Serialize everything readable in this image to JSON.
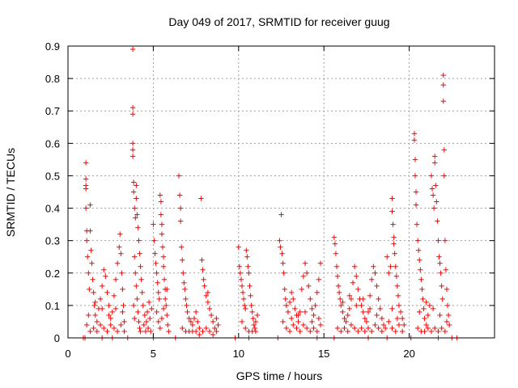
{
  "chart_data": {
    "type": "scatter",
    "title": "Day 049 of 2017, SRMTID for receiver guug",
    "xlabel": "GPS time / hours",
    "ylabel": "SRMTID / TECUs",
    "xlim": [
      0,
      25
    ],
    "ylim": [
      0,
      0.9
    ],
    "xticks": [
      "0",
      "5",
      "10",
      "15",
      "20"
    ],
    "yticks": [
      "0",
      "0.1",
      "0.2",
      "0.3",
      "0.4",
      "0.5",
      "0.6",
      "0.7",
      "0.8",
      "0.9"
    ],
    "grid": true,
    "marker": "plus",
    "color": "#ff0000",
    "points": [
      [
        0.9,
        0.0
      ],
      [
        1.0,
        0.0
      ],
      [
        2.0,
        0.0
      ],
      [
        2.6,
        0.0
      ],
      [
        3.5,
        0.0
      ],
      [
        5.0,
        0.0
      ],
      [
        6.3,
        0.0
      ],
      [
        9.8,
        0.0
      ],
      [
        10.6,
        0.0
      ],
      [
        12.3,
        0.0
      ],
      [
        14.6,
        0.0
      ],
      [
        15.6,
        0.0
      ],
      [
        17.6,
        0.0
      ],
      [
        18.7,
        0.0
      ],
      [
        20.1,
        0.0
      ],
      [
        21.7,
        0.0
      ],
      [
        22.5,
        0.0
      ],
      [
        22.8,
        0.0
      ],
      [
        1.05,
        0.54
      ],
      [
        1.05,
        0.49
      ],
      [
        1.05,
        0.47
      ],
      [
        1.05,
        0.46
      ],
      [
        1.05,
        0.4
      ],
      [
        1.1,
        0.33
      ],
      [
        1.1,
        0.3
      ],
      [
        1.15,
        0.25
      ],
      [
        1.2,
        0.2
      ],
      [
        1.25,
        0.15
      ],
      [
        1.3,
        0.41
      ],
      [
        1.3,
        0.33
      ],
      [
        1.35,
        0.27
      ],
      [
        1.4,
        0.23
      ],
      [
        1.45,
        0.18
      ],
      [
        1.5,
        0.14
      ],
      [
        1.55,
        0.1
      ],
      [
        1.6,
        0.07
      ],
      [
        1.7,
        0.05
      ],
      [
        1.8,
        0.09
      ],
      [
        1.9,
        0.12
      ],
      [
        2.0,
        0.16
      ],
      [
        2.1,
        0.21
      ],
      [
        2.2,
        0.19
      ],
      [
        2.3,
        0.14
      ],
      [
        2.4,
        0.1
      ],
      [
        2.5,
        0.06
      ],
      [
        2.6,
        0.08
      ],
      [
        2.7,
        0.13
      ],
      [
        2.8,
        0.18
      ],
      [
        2.9,
        0.23
      ],
      [
        3.0,
        0.28
      ],
      [
        3.05,
        0.32
      ],
      [
        3.1,
        0.26
      ],
      [
        3.15,
        0.2
      ],
      [
        3.2,
        0.15
      ],
      [
        3.25,
        0.1
      ],
      [
        3.3,
        0.05
      ],
      [
        1.1,
        0.04
      ],
      [
        1.3,
        0.02
      ],
      [
        1.5,
        0.03
      ],
      [
        1.7,
        0.02
      ],
      [
        1.9,
        0.04
      ],
      [
        2.1,
        0.03
      ],
      [
        2.3,
        0.02
      ],
      [
        2.5,
        0.04
      ],
      [
        2.7,
        0.03
      ],
      [
        2.9,
        0.02
      ],
      [
        3.1,
        0.04
      ],
      [
        3.3,
        0.02
      ],
      [
        1.2,
        0.07
      ],
      [
        1.6,
        0.11
      ],
      [
        2.0,
        0.09
      ],
      [
        2.4,
        0.07
      ],
      [
        2.8,
        0.09
      ],
      [
        3.2,
        0.08
      ],
      [
        3.8,
        0.89
      ],
      [
        3.8,
        0.71
      ],
      [
        3.8,
        0.69
      ],
      [
        3.8,
        0.6
      ],
      [
        3.8,
        0.58
      ],
      [
        3.8,
        0.56
      ],
      [
        3.85,
        0.48
      ],
      [
        3.85,
        0.45
      ],
      [
        3.9,
        0.4
      ],
      [
        3.95,
        0.37
      ],
      [
        4.0,
        0.47
      ],
      [
        4.0,
        0.43
      ],
      [
        4.05,
        0.38
      ],
      [
        4.1,
        0.34
      ],
      [
        4.15,
        0.3
      ],
      [
        4.2,
        0.26
      ],
      [
        4.25,
        0.22
      ],
      [
        4.3,
        0.18
      ],
      [
        4.35,
        0.14
      ],
      [
        4.4,
        0.1
      ],
      [
        4.5,
        0.07
      ],
      [
        4.6,
        0.05
      ],
      [
        4.7,
        0.03
      ],
      [
        4.8,
        0.06
      ],
      [
        4.9,
        0.09
      ],
      [
        3.9,
        0.25
      ],
      [
        3.95,
        0.2
      ],
      [
        4.0,
        0.16
      ],
      [
        4.05,
        0.12
      ],
      [
        4.1,
        0.08
      ],
      [
        4.15,
        0.05
      ],
      [
        4.2,
        0.03
      ],
      [
        4.25,
        0.02
      ],
      [
        4.45,
        0.04
      ],
      [
        4.55,
        0.02
      ],
      [
        4.65,
        0.08
      ],
      [
        4.75,
        0.11
      ],
      [
        4.85,
        0.02
      ],
      [
        3.85,
        0.1
      ],
      [
        3.9,
        0.06
      ],
      [
        5.0,
        0.35
      ],
      [
        5.05,
        0.3
      ],
      [
        5.1,
        0.26
      ],
      [
        5.15,
        0.23
      ],
      [
        5.2,
        0.2
      ],
      [
        5.25,
        0.17
      ],
      [
        5.3,
        0.14
      ],
      [
        5.35,
        0.12
      ],
      [
        5.4,
        0.44
      ],
      [
        5.45,
        0.42
      ],
      [
        5.45,
        0.38
      ],
      [
        5.5,
        0.35
      ],
      [
        5.5,
        0.32
      ],
      [
        5.55,
        0.28
      ],
      [
        5.6,
        0.25
      ],
      [
        5.6,
        0.22
      ],
      [
        5.65,
        0.18
      ],
      [
        5.7,
        0.15
      ],
      [
        5.75,
        0.1
      ],
      [
        5.8,
        0.07
      ],
      [
        5.85,
        0.04
      ],
      [
        5.9,
        0.02
      ],
      [
        5.2,
        0.08
      ],
      [
        5.3,
        0.05
      ],
      [
        5.4,
        0.03
      ],
      [
        5.5,
        0.06
      ],
      [
        5.6,
        0.09
      ],
      [
        5.7,
        0.12
      ],
      [
        5.8,
        0.15
      ],
      [
        6.5,
        0.5
      ],
      [
        6.55,
        0.44
      ],
      [
        6.6,
        0.4
      ],
      [
        6.6,
        0.36
      ],
      [
        6.65,
        0.28
      ],
      [
        6.7,
        0.24
      ],
      [
        6.75,
        0.2
      ],
      [
        6.8,
        0.17
      ],
      [
        6.85,
        0.15
      ],
      [
        6.9,
        0.12
      ],
      [
        6.95,
        0.1
      ],
      [
        7.0,
        0.08
      ],
      [
        7.1,
        0.06
      ],
      [
        7.2,
        0.05
      ],
      [
        7.3,
        0.04
      ],
      [
        7.4,
        0.06
      ],
      [
        7.5,
        0.08
      ],
      [
        7.6,
        0.05
      ],
      [
        7.7,
        0.03
      ],
      [
        7.8,
        0.43
      ],
      [
        7.85,
        0.24
      ],
      [
        7.9,
        0.21
      ],
      [
        7.95,
        0.18
      ],
      [
        8.0,
        0.16
      ],
      [
        8.1,
        0.13
      ],
      [
        8.2,
        0.11
      ],
      [
        8.3,
        0.09
      ],
      [
        8.4,
        0.07
      ],
      [
        8.5,
        0.05
      ],
      [
        8.6,
        0.03
      ],
      [
        8.7,
        0.02
      ],
      [
        8.8,
        0.04
      ],
      [
        6.7,
        0.03
      ],
      [
        6.9,
        0.02
      ],
      [
        7.1,
        0.02
      ],
      [
        7.3,
        0.02
      ],
      [
        7.5,
        0.02
      ],
      [
        7.7,
        0.01
      ],
      [
        7.9,
        0.02
      ],
      [
        8.1,
        0.03
      ],
      [
        8.3,
        0.02
      ],
      [
        8.5,
        0.01
      ],
      [
        8.7,
        0.06
      ],
      [
        8.2,
        0.14
      ],
      [
        10.0,
        0.28
      ],
      [
        10.05,
        0.22
      ],
      [
        10.1,
        0.2
      ],
      [
        10.15,
        0.18
      ],
      [
        10.2,
        0.16
      ],
      [
        10.25,
        0.14
      ],
      [
        10.3,
        0.12
      ],
      [
        10.35,
        0.1
      ],
      [
        10.4,
        0.09
      ],
      [
        10.45,
        0.27
      ],
      [
        10.5,
        0.25
      ],
      [
        10.55,
        0.22
      ],
      [
        10.6,
        0.2
      ],
      [
        10.65,
        0.16
      ],
      [
        10.7,
        0.13
      ],
      [
        10.75,
        0.1
      ],
      [
        10.8,
        0.08
      ],
      [
        10.85,
        0.06
      ],
      [
        10.9,
        0.04
      ],
      [
        10.95,
        0.03
      ],
      [
        11.0,
        0.05
      ],
      [
        11.1,
        0.07
      ],
      [
        10.2,
        0.05
      ],
      [
        10.4,
        0.03
      ],
      [
        10.6,
        0.02
      ],
      [
        10.8,
        0.02
      ],
      [
        11.0,
        0.02
      ],
      [
        12.4,
        0.3
      ],
      [
        12.45,
        0.28
      ],
      [
        12.5,
        0.38
      ],
      [
        12.55,
        0.26
      ],
      [
        12.6,
        0.23
      ],
      [
        12.65,
        0.2
      ],
      [
        12.7,
        0.15
      ],
      [
        12.75,
        0.12
      ],
      [
        12.8,
        0.1
      ],
      [
        12.9,
        0.08
      ],
      [
        13.0,
        0.11
      ],
      [
        13.1,
        0.14
      ],
      [
        13.2,
        0.12
      ],
      [
        13.3,
        0.09
      ],
      [
        13.4,
        0.07
      ],
      [
        13.5,
        0.05
      ],
      [
        13.6,
        0.08
      ],
      [
        13.7,
        0.15
      ],
      [
        13.8,
        0.19
      ],
      [
        13.9,
        0.23
      ],
      [
        14.0,
        0.2
      ],
      [
        14.1,
        0.16
      ],
      [
        14.2,
        0.12
      ],
      [
        14.3,
        0.09
      ],
      [
        14.4,
        0.07
      ],
      [
        14.5,
        0.1
      ],
      [
        14.6,
        0.14
      ],
      [
        14.7,
        0.18
      ],
      [
        14.8,
        0.23
      ],
      [
        12.6,
        0.05
      ],
      [
        12.8,
        0.03
      ],
      [
        13.0,
        0.02
      ],
      [
        13.2,
        0.04
      ],
      [
        13.4,
        0.03
      ],
      [
        13.6,
        0.02
      ],
      [
        13.8,
        0.04
      ],
      [
        14.0,
        0.03
      ],
      [
        14.2,
        0.02
      ],
      [
        14.4,
        0.03
      ],
      [
        14.6,
        0.02
      ],
      [
        14.8,
        0.04
      ],
      [
        13.1,
        0.06
      ],
      [
        13.5,
        0.07
      ],
      [
        13.9,
        0.08
      ],
      [
        14.3,
        0.05
      ],
      [
        14.7,
        0.06
      ],
      [
        15.6,
        0.31
      ],
      [
        15.65,
        0.29
      ],
      [
        15.7,
        0.26
      ],
      [
        15.75,
        0.22
      ],
      [
        15.8,
        0.19
      ],
      [
        15.85,
        0.16
      ],
      [
        15.9,
        0.14
      ],
      [
        15.95,
        0.12
      ],
      [
        16.0,
        0.1
      ],
      [
        16.1,
        0.08
      ],
      [
        16.2,
        0.06
      ],
      [
        16.3,
        0.05
      ],
      [
        16.4,
        0.07
      ],
      [
        16.5,
        0.09
      ],
      [
        16.6,
        0.12
      ],
      [
        16.7,
        0.17
      ],
      [
        16.8,
        0.22
      ],
      [
        16.9,
        0.19
      ],
      [
        17.0,
        0.15
      ],
      [
        17.1,
        0.12
      ],
      [
        17.2,
        0.1
      ],
      [
        17.3,
        0.08
      ],
      [
        17.4,
        0.06
      ],
      [
        17.5,
        0.05
      ],
      [
        17.6,
        0.08
      ],
      [
        17.7,
        0.13
      ],
      [
        17.8,
        0.18
      ],
      [
        17.9,
        0.22
      ],
      [
        18.0,
        0.2
      ],
      [
        18.1,
        0.16
      ],
      [
        18.2,
        0.12
      ],
      [
        18.3,
        0.09
      ],
      [
        18.4,
        0.06
      ],
      [
        18.5,
        0.04
      ],
      [
        18.6,
        0.03
      ],
      [
        15.8,
        0.03
      ],
      [
        16.0,
        0.02
      ],
      [
        16.2,
        0.03
      ],
      [
        16.4,
        0.02
      ],
      [
        16.6,
        0.04
      ],
      [
        16.8,
        0.03
      ],
      [
        17.0,
        0.02
      ],
      [
        17.2,
        0.03
      ],
      [
        17.4,
        0.02
      ],
      [
        17.6,
        0.03
      ],
      [
        17.8,
        0.02
      ],
      [
        18.0,
        0.04
      ],
      [
        18.2,
        0.03
      ],
      [
        18.4,
        0.02
      ],
      [
        16.1,
        0.11
      ],
      [
        16.5,
        0.13
      ],
      [
        16.9,
        0.1
      ],
      [
        17.3,
        0.12
      ],
      [
        17.7,
        0.09
      ],
      [
        18.1,
        0.07
      ],
      [
        18.7,
        0.25
      ],
      [
        18.8,
        0.2
      ],
      [
        18.9,
        0.22
      ],
      [
        19.0,
        0.43
      ],
      [
        19.0,
        0.39
      ],
      [
        19.05,
        0.35
      ],
      [
        19.1,
        0.31
      ],
      [
        19.1,
        0.29
      ],
      [
        19.15,
        0.26
      ],
      [
        19.2,
        0.22
      ],
      [
        19.25,
        0.19
      ],
      [
        19.3,
        0.16
      ],
      [
        19.35,
        0.13
      ],
      [
        19.4,
        0.1
      ],
      [
        19.5,
        0.08
      ],
      [
        19.6,
        0.06
      ],
      [
        19.7,
        0.04
      ],
      [
        18.8,
        0.05
      ],
      [
        19.0,
        0.03
      ],
      [
        19.2,
        0.02
      ],
      [
        19.4,
        0.04
      ],
      [
        19.6,
        0.02
      ],
      [
        19.0,
        0.09
      ],
      [
        19.3,
        0.06
      ],
      [
        20.3,
        0.63
      ],
      [
        20.3,
        0.61
      ],
      [
        20.35,
        0.55
      ],
      [
        20.35,
        0.5
      ],
      [
        20.4,
        0.45
      ],
      [
        20.4,
        0.41
      ],
      [
        20.45,
        0.35
      ],
      [
        20.5,
        0.3
      ],
      [
        20.55,
        0.27
      ],
      [
        20.6,
        0.24
      ],
      [
        20.65,
        0.21
      ],
      [
        20.7,
        0.18
      ],
      [
        20.75,
        0.15
      ],
      [
        20.8,
        0.12
      ],
      [
        20.85,
        0.09
      ],
      [
        20.9,
        0.06
      ],
      [
        21.0,
        0.04
      ],
      [
        21.1,
        0.07
      ],
      [
        21.2,
        0.1
      ],
      [
        21.3,
        0.5
      ],
      [
        21.35,
        0.46
      ],
      [
        21.4,
        0.44
      ],
      [
        21.45,
        0.4
      ],
      [
        21.5,
        0.56
      ],
      [
        21.5,
        0.54
      ],
      [
        21.55,
        0.47
      ],
      [
        21.6,
        0.42
      ],
      [
        21.65,
        0.36
      ],
      [
        21.7,
        0.3
      ],
      [
        21.75,
        0.25
      ],
      [
        21.8,
        0.23
      ],
      [
        21.85,
        0.2
      ],
      [
        21.9,
        0.16
      ],
      [
        21.95,
        0.12
      ],
      [
        22.0,
        0.81
      ],
      [
        22.0,
        0.78
      ],
      [
        22.0,
        0.73
      ],
      [
        22.05,
        0.58
      ],
      [
        22.05,
        0.5
      ],
      [
        22.1,
        0.3
      ],
      [
        22.15,
        0.21
      ],
      [
        22.2,
        0.15
      ],
      [
        22.25,
        0.1
      ],
      [
        22.3,
        0.07
      ],
      [
        22.35,
        0.04
      ],
      [
        20.5,
        0.03
      ],
      [
        20.7,
        0.02
      ],
      [
        20.9,
        0.02
      ],
      [
        21.1,
        0.03
      ],
      [
        21.3,
        0.02
      ],
      [
        21.5,
        0.03
      ],
      [
        21.7,
        0.02
      ],
      [
        21.9,
        0.03
      ],
      [
        22.1,
        0.02
      ],
      [
        20.6,
        0.08
      ],
      [
        21.0,
        0.11
      ],
      [
        21.4,
        0.09
      ],
      [
        21.8,
        0.07
      ],
      [
        22.2,
        0.05
      ]
    ]
  }
}
